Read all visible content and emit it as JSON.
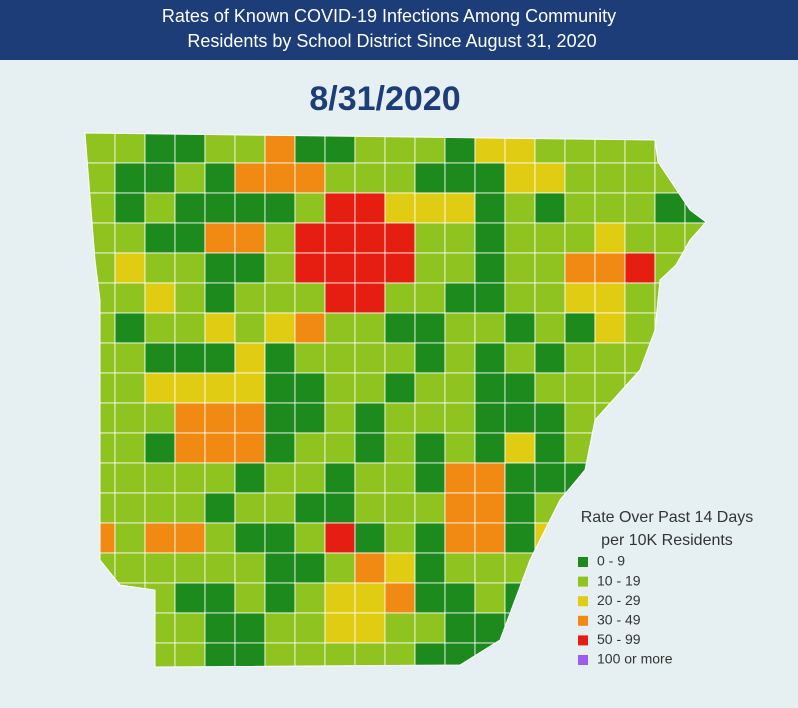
{
  "header": {
    "title_lines": [
      "Rates of Known COVID-19 Infections Among Community",
      "Residents by School District Since August 31, 2020"
    ]
  },
  "date": "8/31/2020",
  "legend": {
    "title_lines": [
      "Rate Over Past 14 Days",
      "per 10K Residents"
    ],
    "items": [
      {
        "label": "0 - 9",
        "color": "#1d8a1d"
      },
      {
        "label": "10 - 19",
        "color": "#8fc31f"
      },
      {
        "label": "20 - 29",
        "color": "#e0cc12"
      },
      {
        "label": "30 - 49",
        "color": "#f08a12"
      },
      {
        "label": "50 - 99",
        "color": "#e61e12"
      },
      {
        "label": "100 or more",
        "color": "#9b5cf0"
      }
    ]
  }
}
